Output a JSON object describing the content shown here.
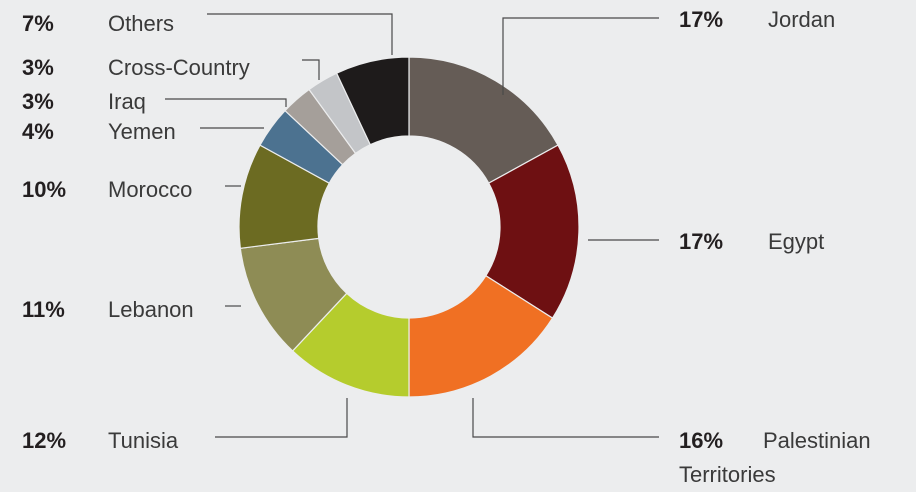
{
  "chart_data": {
    "type": "pie",
    "style": "donut",
    "title": "",
    "slices": [
      {
        "label": "Jordan",
        "value": 17,
        "value_label": "17%",
        "color": "#655c56"
      },
      {
        "label": "Egypt",
        "value": 17,
        "value_label": "17%",
        "color": "#6e1012"
      },
      {
        "label": "Palestinian Territories",
        "label_lines": [
          "Palestinian",
          "Territories"
        ],
        "value": 16,
        "value_label": "16%",
        "color": "#f07023"
      },
      {
        "label": "Tunisia",
        "value": 12,
        "value_label": "12%",
        "color": "#b5cc2d"
      },
      {
        "label": "Lebanon",
        "value": 11,
        "value_label": "11%",
        "color": "#8e8c55"
      },
      {
        "label": "Morocco",
        "value": 10,
        "value_label": "10%",
        "color": "#6c6b22"
      },
      {
        "label": "Yemen",
        "value": 4,
        "value_label": "4%",
        "color": "#4c7290"
      },
      {
        "label": "Iraq",
        "value": 3,
        "value_label": "3%",
        "color": "#a59f9a"
      },
      {
        "label": "Cross-Country",
        "value": 3,
        "value_label": "3%",
        "color": "#c3c5c8"
      },
      {
        "label": "Others",
        "value": 7,
        "value_label": "7%",
        "color": "#1e1b1b"
      }
    ],
    "colors": {
      "background": "#ecedee"
    }
  }
}
